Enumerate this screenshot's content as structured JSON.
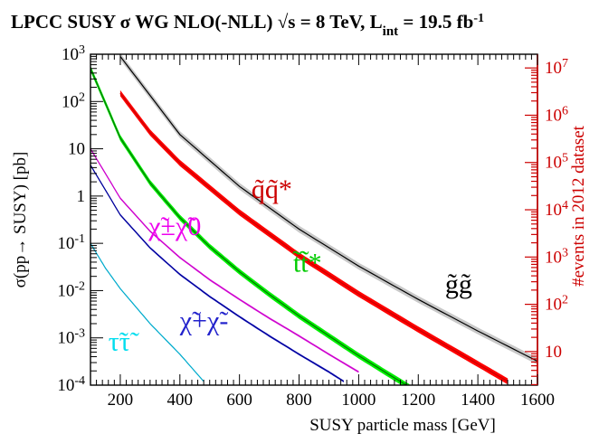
{
  "chart_data": {
    "type": "line",
    "title": "LPCC SUSY σ WG   NLO(-NLL) √s = 8 TeV, L_int = 19.5 fb^-1",
    "xlabel": "SUSY particle mass [GeV]",
    "ylabel": "σ(pp→ SUSY) [pb]",
    "ylabel_right": "#events in 2012 dataset",
    "xlim": [
      100,
      1600
    ],
    "ylim": [
      0.0001,
      1000
    ],
    "yscale": "log",
    "x_ticks": [
      200,
      400,
      600,
      800,
      1000,
      1200,
      1400,
      1600
    ],
    "y_ticks": [
      {
        "value": 0.0001,
        "base": "10",
        "exp": "-4"
      },
      {
        "value": 0.001,
        "base": "10",
        "exp": "-3"
      },
      {
        "value": 0.01,
        "base": "10",
        "exp": "-2"
      },
      {
        "value": 0.1,
        "base": "10",
        "exp": "-1"
      },
      {
        "value": 1,
        "base": "1",
        "exp": ""
      },
      {
        "value": 10,
        "base": "10",
        "exp": ""
      },
      {
        "value": 100,
        "base": "10",
        "exp": "2"
      },
      {
        "value": 1000,
        "base": "10",
        "exp": "3"
      }
    ],
    "y2_ticks": [
      {
        "events": 10,
        "base": "10",
        "exp": ""
      },
      {
        "events": 100,
        "base": "10",
        "exp": "2"
      },
      {
        "events": 1000,
        "base": "10",
        "exp": "3"
      },
      {
        "events": 10000,
        "base": "10",
        "exp": "4"
      },
      {
        "events": 100000,
        "base": "10",
        "exp": "5"
      },
      {
        "events": 1000000,
        "base": "10",
        "exp": "6"
      },
      {
        "events": 10000000,
        "base": "10",
        "exp": "7"
      }
    ],
    "luminosity_pb": 19500,
    "grid": false,
    "series": [
      {
        "name": "gg",
        "color": "#000000",
        "band_color": "#c8c8c8",
        "band_rel": 0.18,
        "x": [
          200,
          400,
          600,
          800,
          1000,
          1200,
          1400,
          1600
        ],
        "y": [
          900,
          20,
          1.6,
          0.2,
          0.033,
          0.0065,
          0.0014,
          0.00032
        ]
      },
      {
        "name": "qq*",
        "color": "#cc0000",
        "band_color": "#ff0000",
        "band_rel": 0.16,
        "x": [
          200,
          300,
          400,
          600,
          800,
          1000,
          1200,
          1400,
          1500
        ],
        "y": [
          150,
          22,
          5,
          0.45,
          0.055,
          0.0085,
          0.0015,
          0.00028,
          0.00012
        ]
      },
      {
        "name": "tt*",
        "color": "#007700",
        "band_color": "#00ee00",
        "band_rel": 0.15,
        "x": [
          100,
          200,
          300,
          400,
          500,
          600,
          700,
          800,
          900,
          1000,
          1100,
          1200
        ],
        "y": [
          500,
          17,
          1.9,
          0.35,
          0.085,
          0.025,
          0.0083,
          0.0029,
          0.0011,
          0.00042,
          0.00017,
          7e-05
        ]
      },
      {
        "name": "χ±χ0",
        "color": "#cc00cc",
        "band_color": "#e040e0",
        "band_rel": 0.05,
        "x": [
          100,
          200,
          300,
          400,
          500,
          600,
          700,
          800,
          900,
          1000
        ],
        "y": [
          10,
          0.9,
          0.18,
          0.05,
          0.017,
          0.0065,
          0.0026,
          0.0011,
          0.00045,
          0.00019
        ]
      },
      {
        "name": "χ+χ-",
        "color": "#000099",
        "band_color": "#2a2acc",
        "band_rel": 0.05,
        "x": [
          100,
          200,
          300,
          400,
          500,
          600,
          700,
          800,
          900,
          950
        ],
        "y": [
          4.5,
          0.4,
          0.08,
          0.022,
          0.0075,
          0.0028,
          0.0011,
          0.00045,
          0.00019,
          0.00012
        ]
      },
      {
        "name": "ττ",
        "color": "#00aacc",
        "band_color": "#00ccdd",
        "band_rel": 0.03,
        "x": [
          100,
          150,
          200,
          300,
          400,
          480
        ],
        "y": [
          0.1,
          0.03,
          0.011,
          0.002,
          0.00045,
          0.00012
        ]
      }
    ],
    "annotations": [
      {
        "text": "g̃g̃",
        "x": 1290,
        "y": 0.009,
        "color": "#000000"
      },
      {
        "text": "q̃q̃*",
        "x": 640,
        "y": 0.9,
        "color": "#cc0000"
      },
      {
        "text": "t̃t̃*",
        "x": 780,
        "y": 0.025,
        "color": "#00cc00"
      },
      {
        "text": "χ̃±χ̃0",
        "x": 295,
        "y": 0.15,
        "color": "#ee00ee"
      },
      {
        "text": "χ̃+χ̃-",
        "x": 400,
        "y": 0.0015,
        "color": "#2222cc"
      },
      {
        "text": "τ̃τ̃",
        "x": 160,
        "y": 0.00055,
        "color": "#00ddee"
      }
    ]
  }
}
